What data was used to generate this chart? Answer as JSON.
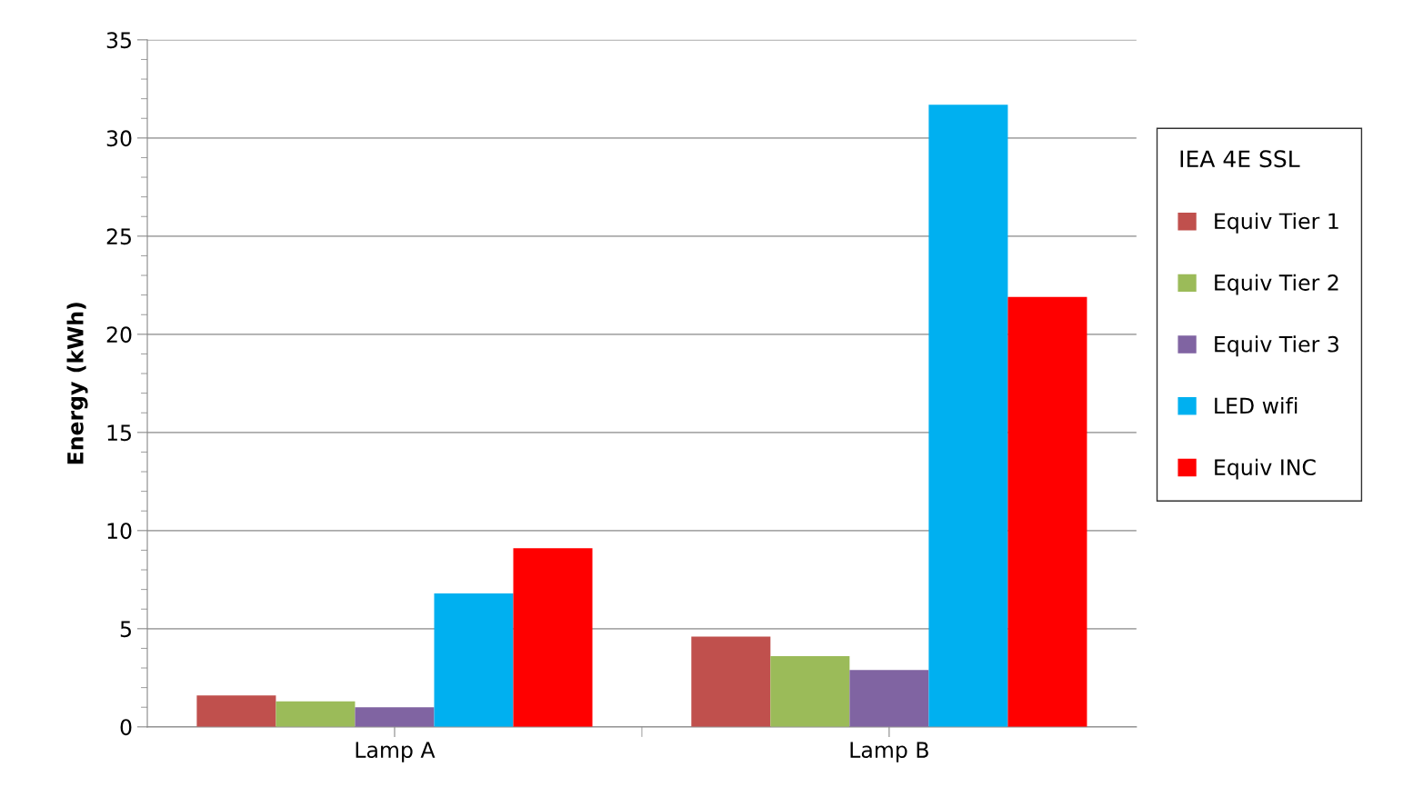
{
  "chart_data": {
    "type": "bar",
    "ylabel": "Energy (kWh)",
    "legend_title": "IEA 4E SSL",
    "categories": [
      "Lamp A",
      "Lamp B"
    ],
    "series": [
      {
        "name": "Equiv Tier 1",
        "color": "#c0504d",
        "values": [
          1.6,
          4.6
        ]
      },
      {
        "name": "Equiv Tier 2",
        "color": "#9bbb59",
        "values": [
          1.3,
          3.6
        ]
      },
      {
        "name": "Equiv Tier 3",
        "color": "#8064a2",
        "values": [
          1.0,
          2.9
        ]
      },
      {
        "name": "LED wifi",
        "color": "#00b0f0",
        "values": [
          6.8,
          31.7
        ]
      },
      {
        "name": "Equiv INC",
        "color": "#ff0000",
        "values": [
          9.1,
          21.9
        ]
      }
    ],
    "ylim": [
      0,
      35
    ],
    "yticks": [
      0,
      5,
      10,
      15,
      20,
      25,
      30,
      35
    ],
    "grid": "y",
    "legend": "right"
  }
}
